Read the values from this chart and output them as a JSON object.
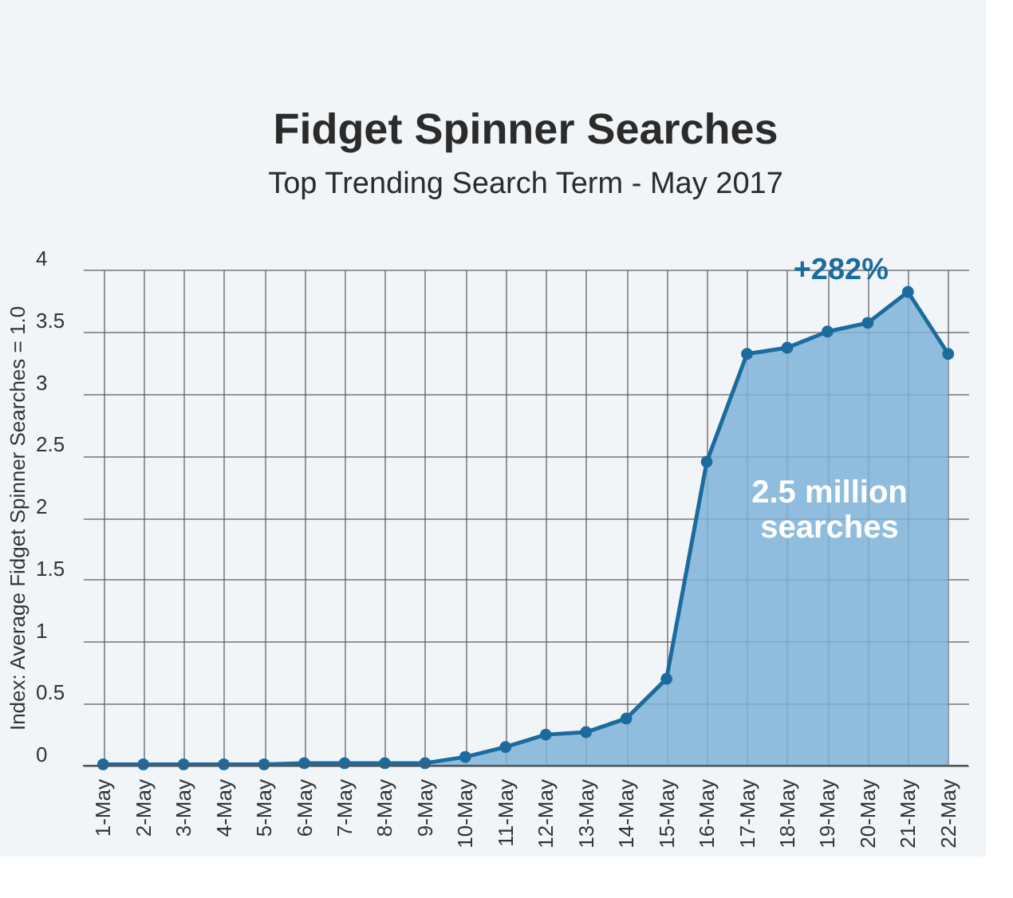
{
  "chart_data": {
    "type": "area",
    "title": "Fidget Spinner Searches",
    "subtitle": "Top Trending Search Term - May 2017",
    "ylabel": "Index: Average Fidget Spinner Searches = 1.0",
    "categories": [
      "1-May",
      "2-May",
      "3-May",
      "4-May",
      "5-May",
      "6-May",
      "7-May",
      "8-May",
      "9-May",
      "10-May",
      "11-May",
      "12-May",
      "13-May",
      "14-May",
      "15-May",
      "16-May",
      "17-May",
      "18-May",
      "19-May",
      "20-May",
      "21-May",
      "22-May"
    ],
    "series": [
      {
        "color": "#1b6b9f",
        "values": [
          0.01,
          0.01,
          0.01,
          0.01,
          0.01,
          0.02,
          0.02,
          0.02,
          0.02,
          0.07,
          0.15,
          0.25,
          0.27,
          0.38,
          0.7,
          2.45,
          3.32,
          3.37,
          3.5,
          3.57,
          3.82,
          3.32
        ]
      }
    ],
    "ylim": [
      0,
      4
    ],
    "yticks": [
      0,
      0.5,
      1,
      1.5,
      2,
      2.5,
      3,
      3.5,
      4
    ],
    "grid": true,
    "marker": "circle",
    "annotations": [
      {
        "text": "+282%",
        "x": "21-May",
        "y": 3.82
      },
      "2.5 million searches"
    ]
  }
}
